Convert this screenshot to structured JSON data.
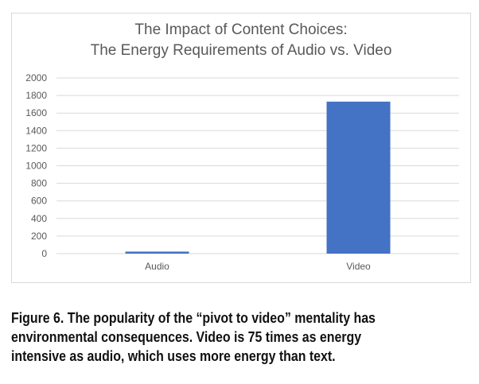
{
  "chart_data": {
    "type": "bar",
    "title_lines": [
      "The Impact of Content Choices:",
      "The Energy Requirements of Audio vs. Video"
    ],
    "categories": [
      "Audio",
      "Video"
    ],
    "values": [
      23,
      1730
    ],
    "ylim": [
      0,
      2000
    ],
    "yticks": [
      0,
      200,
      400,
      600,
      800,
      1000,
      1200,
      1400,
      1600,
      1800,
      2000
    ],
    "grid": true,
    "bar_color": "#4472c4",
    "grid_color": "#d9d9d9"
  },
  "caption": {
    "lines": [
      "Figure 6. The popularity of the “pivot to video” mentality has",
      "environmental consequences. Video is 75 times as energy",
      "intensive as audio, which uses more energy than text."
    ]
  }
}
